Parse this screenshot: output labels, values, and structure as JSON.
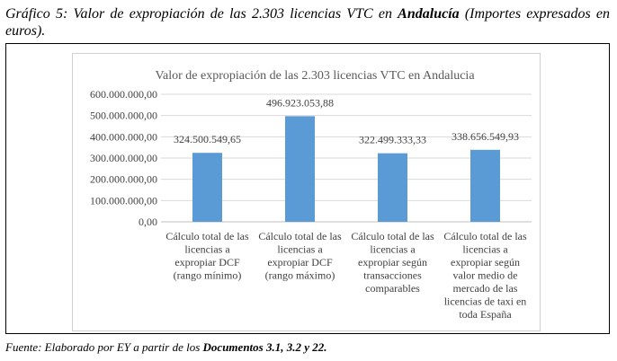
{
  "caption": {
    "prefix": "Gráfico 5: Valor de expropiación de las 2.303 licencias VTC en ",
    "bold": "Andalucía",
    "suffix": " (Importes expresados en euros)."
  },
  "source": {
    "prefix": "Fuente: Elaborado por EY a partir de los ",
    "bold": "Documentos 3.1, 3.2 y 22."
  },
  "colors": {
    "bar": "#5b9bd5",
    "grid": "#d9d9d9",
    "axis": "#bfbfbf"
  },
  "chart_data": {
    "type": "bar",
    "title": "Valor de expropiación de las 2.303 licencias VTC en Andalucia",
    "categories": [
      [
        "Cálculo total de las",
        "licencias a",
        "expropiar DCF",
        "(rango mínimo)"
      ],
      [
        "Cálculo total de las",
        "licencias a",
        "expropiar DCF",
        "(rango máximo)"
      ],
      [
        "Cálculo total de las",
        "licencias a",
        "expropiar según",
        "transacciones",
        "comparables"
      ],
      [
        "Cálculo total de las",
        "licencias a",
        "expropiar según",
        "valor medio de",
        "mercado de las",
        "licencias de taxi en",
        "toda España"
      ]
    ],
    "values": [
      324500549.65,
      496923053.88,
      322499333.33,
      338656549.93
    ],
    "value_labels": [
      "324.500.549,65",
      "496.923.053,88",
      "322.499.333,33",
      "338.656.549,93"
    ],
    "ylim": [
      0,
      600000000
    ],
    "yticks": [
      "0,00",
      "100.000.000,00",
      "200.000.000,00",
      "300.000.000,00",
      "400.000.000,00",
      "500.000.000,00",
      "600.000.000,00"
    ],
    "grid": true,
    "legend": false
  }
}
